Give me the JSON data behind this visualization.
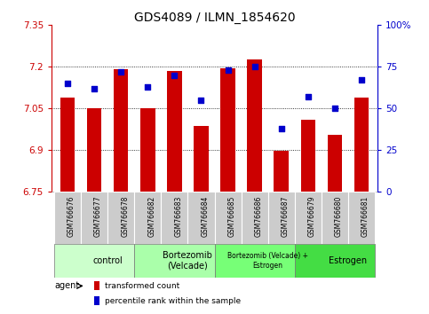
{
  "title": "GDS4089 / ILMN_1854620",
  "samples": [
    "GSM766676",
    "GSM766677",
    "GSM766678",
    "GSM766682",
    "GSM766683",
    "GSM766684",
    "GSM766685",
    "GSM766686",
    "GSM766687",
    "GSM766679",
    "GSM766680",
    "GSM766681"
  ],
  "bar_values": [
    7.09,
    7.05,
    7.19,
    7.05,
    7.185,
    6.985,
    7.195,
    7.225,
    6.895,
    7.01,
    6.955,
    7.09
  ],
  "dot_values": [
    65,
    62,
    72,
    63,
    70,
    55,
    73,
    75,
    38,
    57,
    50,
    67
  ],
  "ymin": 6.75,
  "ymax": 7.35,
  "yticks": [
    6.75,
    6.9,
    7.05,
    7.2,
    7.35
  ],
  "ytick_labels": [
    "6.75",
    "6.9",
    "7.05",
    "7.2",
    "7.35"
  ],
  "y2ticks": [
    0,
    25,
    50,
    75,
    100
  ],
  "y2tick_labels": [
    "0",
    "25",
    "50",
    "75",
    "100%"
  ],
  "bar_color": "#cc0000",
  "dot_color": "#0000cc",
  "bar_width": 0.55,
  "groups": [
    {
      "label": "control",
      "start": 0,
      "end": 3,
      "color": "#ccffcc",
      "fontsize": 7
    },
    {
      "label": "Bortezomib\n(Velcade)",
      "start": 3,
      "end": 6,
      "color": "#aaffaa",
      "fontsize": 7
    },
    {
      "label": "Bortezomib (Velcade) +\nEstrogen",
      "start": 6,
      "end": 9,
      "color": "#77ff77",
      "fontsize": 5.5
    },
    {
      "label": "Estrogen",
      "start": 9,
      "end": 12,
      "color": "#44dd44",
      "fontsize": 7
    }
  ],
  "legend_bar_label": "transformed count",
  "legend_dot_label": "percentile rank within the sample",
  "left_axis_color": "#cc0000",
  "right_axis_color": "#0000cc",
  "bg_color": "#ffffff",
  "title_fontsize": 10,
  "tick_fontsize": 7.5,
  "sample_fontsize": 5.5,
  "group_box_color": "#cccccc"
}
